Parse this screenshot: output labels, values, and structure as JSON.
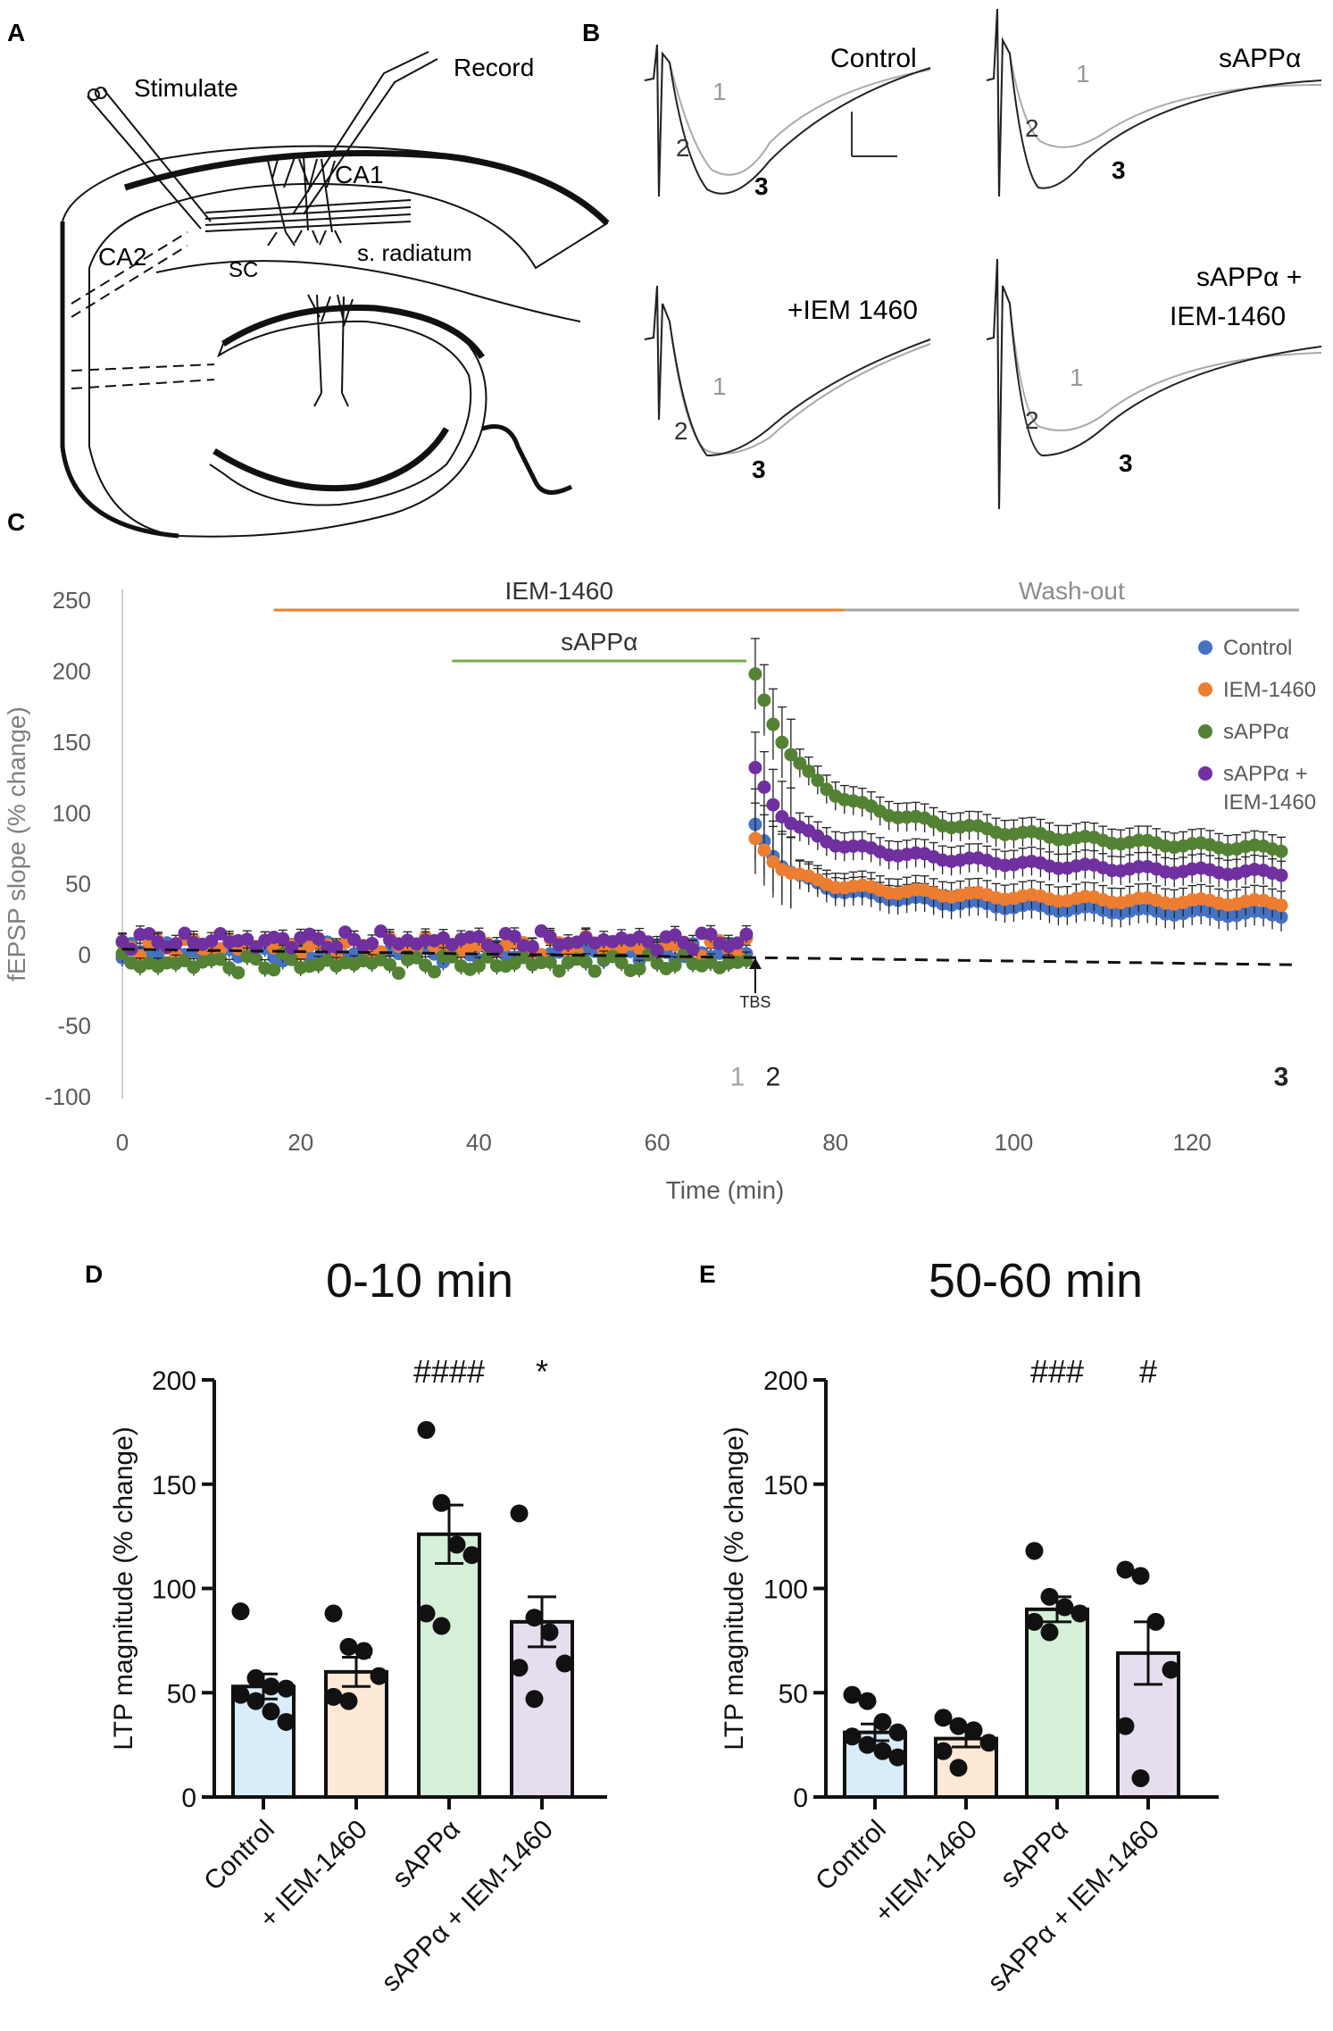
{
  "panels": {
    "A": {
      "letter": "A",
      "labels": {
        "stimulate": "Stimulate",
        "record": "Record",
        "ca1": "CA1",
        "ca2": "CA2",
        "sc": "SC",
        "radiatum": "s. radiatum"
      }
    },
    "B": {
      "letter": "B",
      "traces": [
        {
          "title": "Control",
          "markers": [
            "1",
            "2",
            "3"
          ]
        },
        {
          "title": "sAPPα",
          "markers": [
            "1",
            "2",
            "3"
          ]
        },
        {
          "title": "+IEM 1460",
          "markers": [
            "1",
            "2",
            "3"
          ]
        },
        {
          "title_line1": "sAPPα +",
          "title_line2": "IEM-1460",
          "markers": [
            "1",
            "2",
            "3"
          ]
        }
      ]
    },
    "C": {
      "letter": "C"
    },
    "D": {
      "letter": "D"
    },
    "E": {
      "letter": "E"
    }
  },
  "chart_data": [
    {
      "id": "C",
      "type": "scatter",
      "title": "",
      "xlabel": "Time (min)",
      "ylabel": "fEPSP slope (% change)",
      "xlim": [
        0,
        132
      ],
      "ylim": [
        -100,
        250
      ],
      "xticks": [
        0,
        20,
        40,
        60,
        80,
        100,
        120
      ],
      "yticks": [
        -100,
        -50,
        0,
        50,
        100,
        150,
        200,
        250
      ],
      "bars": [
        {
          "label": "IEM-1460",
          "start": 17,
          "end": 81,
          "color": "#ed7d31"
        },
        {
          "label": "Wash-out",
          "start": 81,
          "end": 132,
          "color": "#a6a6a6"
        },
        {
          "label": "sAPPα",
          "start": 37,
          "end": 70,
          "color": "#70ad47"
        }
      ],
      "annotation": {
        "label": "TBS",
        "x": 71
      },
      "timepoints": [
        {
          "label": "1",
          "x": 69
        },
        {
          "label": "2",
          "x": 73
        },
        {
          "label": "3",
          "x": 130
        }
      ],
      "legend_position": "right",
      "series": [
        {
          "name": "Control",
          "color": "#4472c4",
          "baseline": 2,
          "peak": 92,
          "plateau": 26,
          "fast": 3
        },
        {
          "name": "IEM-1460",
          "color": "#ed7d31",
          "baseline": 6,
          "peak": 82,
          "plateau": 35,
          "fast": 3
        },
        {
          "name": "sAPPα",
          "color": "#548235",
          "baseline": -6,
          "peak": 198,
          "plateau": 70,
          "fast": 4
        },
        {
          "name": "sAPPα + IEM-1460",
          "legend_line1": "sAPPα +",
          "legend_line2": "IEM-1460",
          "color": "#7030a0",
          "baseline": 10,
          "peak": 132,
          "plateau": 55,
          "fast": 3
        }
      ]
    },
    {
      "id": "D",
      "type": "bar",
      "title": "0-10 min",
      "xlabel": "",
      "ylabel": "LTP magnitude (% change)",
      "ylim": [
        0,
        200
      ],
      "yticks": [
        0,
        50,
        100,
        150,
        200
      ],
      "categories": [
        "Control",
        "+ IEM-1460",
        "sAPPα",
        "sAPPα + IEM-1460"
      ],
      "values": [
        53,
        60,
        126,
        84
      ],
      "errors": [
        6,
        7,
        14,
        12
      ],
      "colors": [
        "#d9ecfa",
        "#fde9d6",
        "#d5efd9",
        "#e6deef"
      ],
      "significance": [
        "",
        "",
        "####",
        "*"
      ],
      "points": [
        [
          89,
          57,
          53,
          52,
          49,
          46,
          41,
          36
        ],
        [
          88,
          72,
          70,
          58,
          48,
          46
        ],
        [
          176,
          141,
          121,
          116,
          88,
          82
        ],
        [
          136,
          86,
          79,
          64,
          62,
          47
        ]
      ]
    },
    {
      "id": "E",
      "type": "bar",
      "title": "50-60 min",
      "xlabel": "",
      "ylabel": "LTP magnitude (% change)",
      "ylim": [
        0,
        200
      ],
      "yticks": [
        0,
        50,
        100,
        150,
        200
      ],
      "categories": [
        "Control",
        "+IEM-1460",
        "sAPPα",
        "sAPPα + IEM-1460"
      ],
      "values": [
        31,
        28,
        90,
        69
      ],
      "errors": [
        4,
        4,
        6,
        15
      ],
      "colors": [
        "#d9ecfa",
        "#fde9d6",
        "#d5efd9",
        "#e6deef"
      ],
      "significance": [
        "",
        "",
        "###",
        "#"
      ],
      "points": [
        [
          49,
          46,
          36,
          31,
          29,
          25,
          22,
          19
        ],
        [
          38,
          34,
          32,
          26,
          22,
          14
        ],
        [
          118,
          96,
          91,
          88,
          84,
          79
        ],
        [
          109,
          106,
          84,
          61,
          34,
          9
        ]
      ]
    }
  ]
}
